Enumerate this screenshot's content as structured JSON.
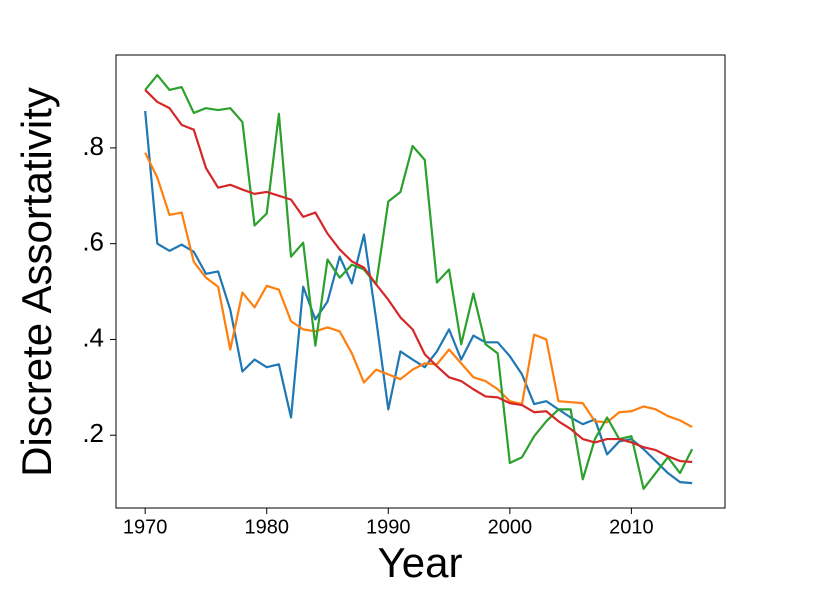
{
  "chart_data": {
    "type": "line",
    "x_label": "Year",
    "y_label": "Discrete Assortativity",
    "x": [
      1970,
      1971,
      1972,
      1973,
      1974,
      1975,
      1976,
      1977,
      1978,
      1979,
      1980,
      1981,
      1982,
      1983,
      1984,
      1985,
      1986,
      1987,
      1988,
      1989,
      1990,
      1991,
      1992,
      1993,
      1994,
      1995,
      1996,
      1997,
      1998,
      1999,
      2000,
      2001,
      2002,
      2003,
      2004,
      2005,
      2006,
      2007,
      2008,
      2009,
      2010,
      2011,
      2012,
      2013,
      2014,
      2015
    ],
    "series": [
      {
        "color": "#1f77b4",
        "values": [
          0.877,
          0.6,
          0.585,
          0.598,
          0.583,
          0.537,
          0.542,
          0.462,
          0.333,
          0.358,
          0.342,
          0.348,
          0.237,
          0.51,
          0.442,
          0.479,
          0.573,
          0.517,
          0.619,
          0.442,
          0.254,
          0.375,
          0.358,
          0.342,
          0.375,
          0.421,
          0.358,
          0.408,
          0.394,
          0.394,
          0.365,
          0.327,
          0.265,
          0.271,
          0.254,
          0.237,
          0.223,
          0.233,
          0.16,
          0.187,
          0.192,
          0.171,
          0.146,
          0.121,
          0.102,
          0.1
        ]
      },
      {
        "color": "#ff7f0e",
        "values": [
          0.79,
          0.738,
          0.66,
          0.665,
          0.562,
          0.529,
          0.51,
          0.379,
          0.498,
          0.467,
          0.512,
          0.504,
          0.438,
          0.421,
          0.417,
          0.425,
          0.417,
          0.371,
          0.31,
          0.337,
          0.327,
          0.317,
          0.337,
          0.35,
          0.348,
          0.379,
          0.35,
          0.321,
          0.313,
          0.296,
          0.271,
          0.265,
          0.41,
          0.4,
          0.271,
          0.269,
          0.267,
          0.229,
          0.227,
          0.248,
          0.25,
          0.26,
          0.254,
          0.24,
          0.231,
          0.217
        ]
      },
      {
        "color": "#2ca02c",
        "values": [
          0.921,
          0.952,
          0.921,
          0.927,
          0.873,
          0.883,
          0.879,
          0.883,
          0.854,
          0.638,
          0.663,
          0.871,
          0.573,
          0.602,
          0.387,
          0.567,
          0.529,
          0.556,
          0.546,
          0.515,
          0.688,
          0.708,
          0.804,
          0.775,
          0.519,
          0.546,
          0.39,
          0.496,
          0.39,
          0.371,
          0.142,
          0.154,
          0.198,
          0.229,
          0.254,
          0.254,
          0.108,
          0.192,
          0.237,
          0.192,
          0.198,
          0.088,
          0.121,
          0.154,
          0.121,
          0.171
        ]
      },
      {
        "color": "#d62728",
        "values": [
          0.921,
          0.896,
          0.883,
          0.848,
          0.838,
          0.758,
          0.717,
          0.723,
          0.713,
          0.704,
          0.708,
          0.7,
          0.692,
          0.656,
          0.665,
          0.621,
          0.588,
          0.563,
          0.55,
          0.515,
          0.483,
          0.446,
          0.421,
          0.369,
          0.344,
          0.321,
          0.313,
          0.296,
          0.281,
          0.279,
          0.267,
          0.263,
          0.248,
          0.25,
          0.229,
          0.213,
          0.192,
          0.185,
          0.192,
          0.192,
          0.185,
          0.175,
          0.169,
          0.156,
          0.146,
          0.144
        ]
      }
    ],
    "xlim": [
      1967.6,
      2017.7
    ],
    "xticks": [
      1970,
      1980,
      1990,
      2000,
      2010
    ],
    "ylim": [
      0.048,
      0.994
    ],
    "yticks": [
      {
        "value": 0.2,
        "label": ".2"
      },
      {
        "value": 0.4,
        "label": ".4"
      },
      {
        "value": 0.6,
        "label": ".6"
      },
      {
        "value": 0.8,
        "label": ".8"
      }
    ],
    "grid": false
  }
}
